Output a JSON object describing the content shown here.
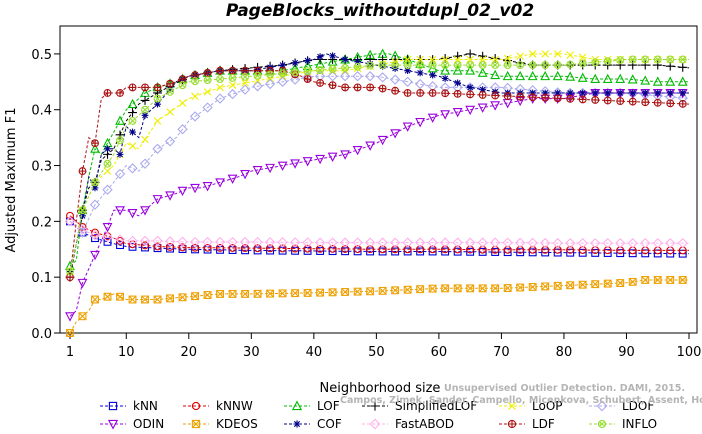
{
  "chart_data": {
    "type": "line",
    "title": "PageBlocks_withoutdupl_02_v02",
    "xlabel": "Neighborhood size",
    "ylabel": "Adjusted Maximum F1",
    "xlim": [
      1,
      100
    ],
    "ylim": [
      0,
      0.55
    ],
    "x_ticks": [
      1,
      10,
      20,
      30,
      40,
      50,
      60,
      70,
      80,
      90,
      100
    ],
    "y_ticks": [
      0.0,
      0.1,
      0.2,
      0.3,
      0.4,
      0.5
    ],
    "y_tick_labels": [
      "0.0",
      "0.1",
      "0.2",
      "0.3",
      "0.4",
      "0.5"
    ],
    "grid": false,
    "legend_position": "bottom",
    "series": [
      {
        "name": "kNN",
        "color": "#0000dd",
        "marker": "square",
        "x": [
          1,
          2,
          3,
          5,
          8,
          10,
          15,
          20,
          30,
          40,
          50,
          60,
          70,
          80,
          90,
          100
        ],
        "y": [
          0.2,
          0.19,
          0.18,
          0.17,
          0.16,
          0.155,
          0.152,
          0.15,
          0.148,
          0.147,
          0.146,
          0.146,
          0.145,
          0.144,
          0.143,
          0.142
        ]
      },
      {
        "name": "kNNW",
        "color": "#dd0000",
        "marker": "circle",
        "x": [
          1,
          2,
          3,
          5,
          8,
          10,
          15,
          20,
          30,
          40,
          50,
          60,
          70,
          80,
          90,
          100
        ],
        "y": [
          0.21,
          0.2,
          0.19,
          0.18,
          0.17,
          0.16,
          0.155,
          0.153,
          0.152,
          0.151,
          0.15,
          0.15,
          0.149,
          0.149,
          0.148,
          0.148
        ]
      },
      {
        "name": "LOF",
        "color": "#00bb00",
        "marker": "triangle-up",
        "x": [
          1,
          2,
          3,
          4,
          5,
          6,
          7,
          8,
          9,
          10,
          11,
          12,
          13,
          15,
          18,
          20,
          25,
          30,
          35,
          40,
          45,
          50,
          52,
          55,
          60,
          65,
          70,
          75,
          80,
          85,
          90,
          95,
          100
        ],
        "y": [
          0.12,
          0.13,
          0.22,
          0.28,
          0.33,
          0.32,
          0.34,
          0.36,
          0.38,
          0.4,
          0.41,
          0.42,
          0.43,
          0.44,
          0.45,
          0.46,
          0.47,
          0.47,
          0.47,
          0.48,
          0.49,
          0.5,
          0.5,
          0.49,
          0.47,
          0.47,
          0.46,
          0.46,
          0.46,
          0.455,
          0.455,
          0.45,
          0.45
        ]
      },
      {
        "name": "SimplifiedLOF",
        "color": "#000000",
        "marker": "plus",
        "x": [
          1,
          2,
          3,
          4,
          5,
          6,
          7,
          8,
          10,
          12,
          15,
          20,
          25,
          30,
          35,
          40,
          45,
          50,
          55,
          60,
          65,
          70,
          75,
          80,
          85,
          90,
          95,
          100
        ],
        "y": [
          0.1,
          0.16,
          0.22,
          0.26,
          0.27,
          0.31,
          0.32,
          0.33,
          0.38,
          0.41,
          0.43,
          0.46,
          0.47,
          0.475,
          0.48,
          0.49,
          0.49,
          0.49,
          0.49,
          0.49,
          0.5,
          0.49,
          0.48,
          0.48,
          0.48,
          0.48,
          0.48,
          0.475
        ]
      },
      {
        "name": "LoOP",
        "color": "#eeee00",
        "marker": "x",
        "x": [
          1,
          2,
          3,
          5,
          8,
          10,
          12,
          15,
          20,
          25,
          30,
          35,
          40,
          45,
          50,
          55,
          60,
          65,
          70,
          75,
          80,
          85,
          90,
          95,
          100
        ],
        "y": [
          0.11,
          0.16,
          0.22,
          0.27,
          0.3,
          0.34,
          0.33,
          0.38,
          0.42,
          0.44,
          0.45,
          0.46,
          0.47,
          0.47,
          0.48,
          0.49,
          0.49,
          0.49,
          0.49,
          0.5,
          0.5,
          0.49,
          0.49,
          0.49,
          0.49
        ]
      },
      {
        "name": "LDOF",
        "color": "#aaaaee",
        "marker": "diamond",
        "x": [
          1,
          2,
          3,
          5,
          8,
          10,
          12,
          15,
          18,
          20,
          25,
          30,
          35,
          40,
          45,
          50,
          55,
          60,
          70,
          80,
          90,
          100
        ],
        "y": [
          0.2,
          0.19,
          0.18,
          0.23,
          0.27,
          0.3,
          0.29,
          0.33,
          0.35,
          0.38,
          0.42,
          0.44,
          0.45,
          0.46,
          0.46,
          0.46,
          0.45,
          0.44,
          0.44,
          0.43,
          0.43,
          0.42
        ]
      },
      {
        "name": "ODIN",
        "color": "#9900dd",
        "marker": "triangle-down",
        "x": [
          1,
          2,
          3,
          5,
          7,
          8,
          10,
          12,
          15,
          18,
          20,
          22,
          25,
          28,
          30,
          35,
          40,
          45,
          50,
          55,
          60,
          65,
          70,
          75,
          80,
          85,
          90,
          95,
          100
        ],
        "y": [
          0.03,
          0.04,
          0.09,
          0.14,
          0.19,
          0.22,
          0.22,
          0.21,
          0.24,
          0.25,
          0.26,
          0.26,
          0.27,
          0.28,
          0.29,
          0.3,
          0.31,
          0.32,
          0.34,
          0.37,
          0.39,
          0.4,
          0.41,
          0.42,
          0.42,
          0.43,
          0.43,
          0.43,
          0.43
        ]
      },
      {
        "name": "KDEOS",
        "color": "#eea000",
        "marker": "square-x",
        "x": [
          1,
          2,
          3,
          4,
          5,
          6,
          8,
          10,
          12,
          15,
          20,
          25,
          30,
          40,
          50,
          60,
          70,
          80,
          90,
          93,
          100
        ],
        "y": [
          0.0,
          0.02,
          0.03,
          0.04,
          0.06,
          0.06,
          0.07,
          0.06,
          0.06,
          0.06,
          0.065,
          0.07,
          0.07,
          0.072,
          0.075,
          0.08,
          0.08,
          0.085,
          0.09,
          0.095,
          0.095
        ]
      },
      {
        "name": "COF",
        "color": "#000088",
        "marker": "asterisk",
        "x": [
          1,
          2,
          3,
          4,
          5,
          6,
          7,
          8,
          9,
          10,
          12,
          13,
          15,
          18,
          20,
          25,
          30,
          35,
          40,
          42,
          45,
          50,
          55,
          60,
          65,
          70,
          75,
          80,
          85,
          90,
          95,
          100
        ],
        "y": [
          0.11,
          0.16,
          0.21,
          0.28,
          0.26,
          0.32,
          0.33,
          0.33,
          0.32,
          0.37,
          0.35,
          0.39,
          0.41,
          0.45,
          0.46,
          0.47,
          0.47,
          0.48,
          0.49,
          0.5,
          0.49,
          0.48,
          0.47,
          0.46,
          0.44,
          0.43,
          0.43,
          0.43,
          0.43,
          0.43,
          0.43,
          0.43
        ]
      },
      {
        "name": "FastABOD",
        "color": "#ffb0ee",
        "marker": "diamond-filled",
        "x": [
          1,
          2,
          3,
          5,
          8,
          10,
          15,
          20,
          30,
          40,
          50,
          60,
          70,
          80,
          90,
          100
        ],
        "y": [
          0.2,
          0.19,
          0.185,
          0.175,
          0.17,
          0.165,
          0.165,
          0.163,
          0.163,
          0.162,
          0.162,
          0.162,
          0.162,
          0.161,
          0.161,
          0.161
        ]
      },
      {
        "name": "LDF",
        "color": "#aa1111",
        "marker": "circle-plus",
        "x": [
          1,
          2,
          3,
          4,
          5,
          6,
          7,
          8,
          9,
          10,
          12,
          15,
          18,
          20,
          25,
          30,
          35,
          38,
          40,
          45,
          50,
          55,
          60,
          70,
          80,
          90,
          100
        ],
        "y": [
          0.1,
          0.2,
          0.29,
          0.35,
          0.34,
          0.42,
          0.43,
          0.43,
          0.43,
          0.44,
          0.44,
          0.44,
          0.45,
          0.46,
          0.47,
          0.47,
          0.47,
          0.46,
          0.45,
          0.44,
          0.44,
          0.43,
          0.43,
          0.425,
          0.42,
          0.415,
          0.41
        ]
      },
      {
        "name": "INFLO",
        "color": "#99dd33",
        "marker": "circle-x",
        "x": [
          1,
          2,
          3,
          5,
          8,
          10,
          15,
          20,
          30,
          40,
          50,
          60,
          70,
          80,
          90,
          95,
          100
        ],
        "y": [
          0.11,
          0.16,
          0.22,
          0.27,
          0.32,
          0.37,
          0.42,
          0.45,
          0.46,
          0.47,
          0.48,
          0.48,
          0.48,
          0.48,
          0.49,
          0.49,
          0.49
        ]
      }
    ],
    "legend_order": [
      "kNN",
      "kNNW",
      "LOF",
      "SimplifiedLOF",
      "LoOP",
      "LDOF",
      "ODIN",
      "KDEOS",
      "COF",
      "FastABOD",
      "LDF",
      "INFLO"
    ]
  },
  "watermark": {
    "line1": "Unsupervised Outlier Detection. DAMI, 2015.",
    "line2": "Campos, Zimek, Sander, Campello, Micenkova, Schubert, Assent, Houle"
  }
}
